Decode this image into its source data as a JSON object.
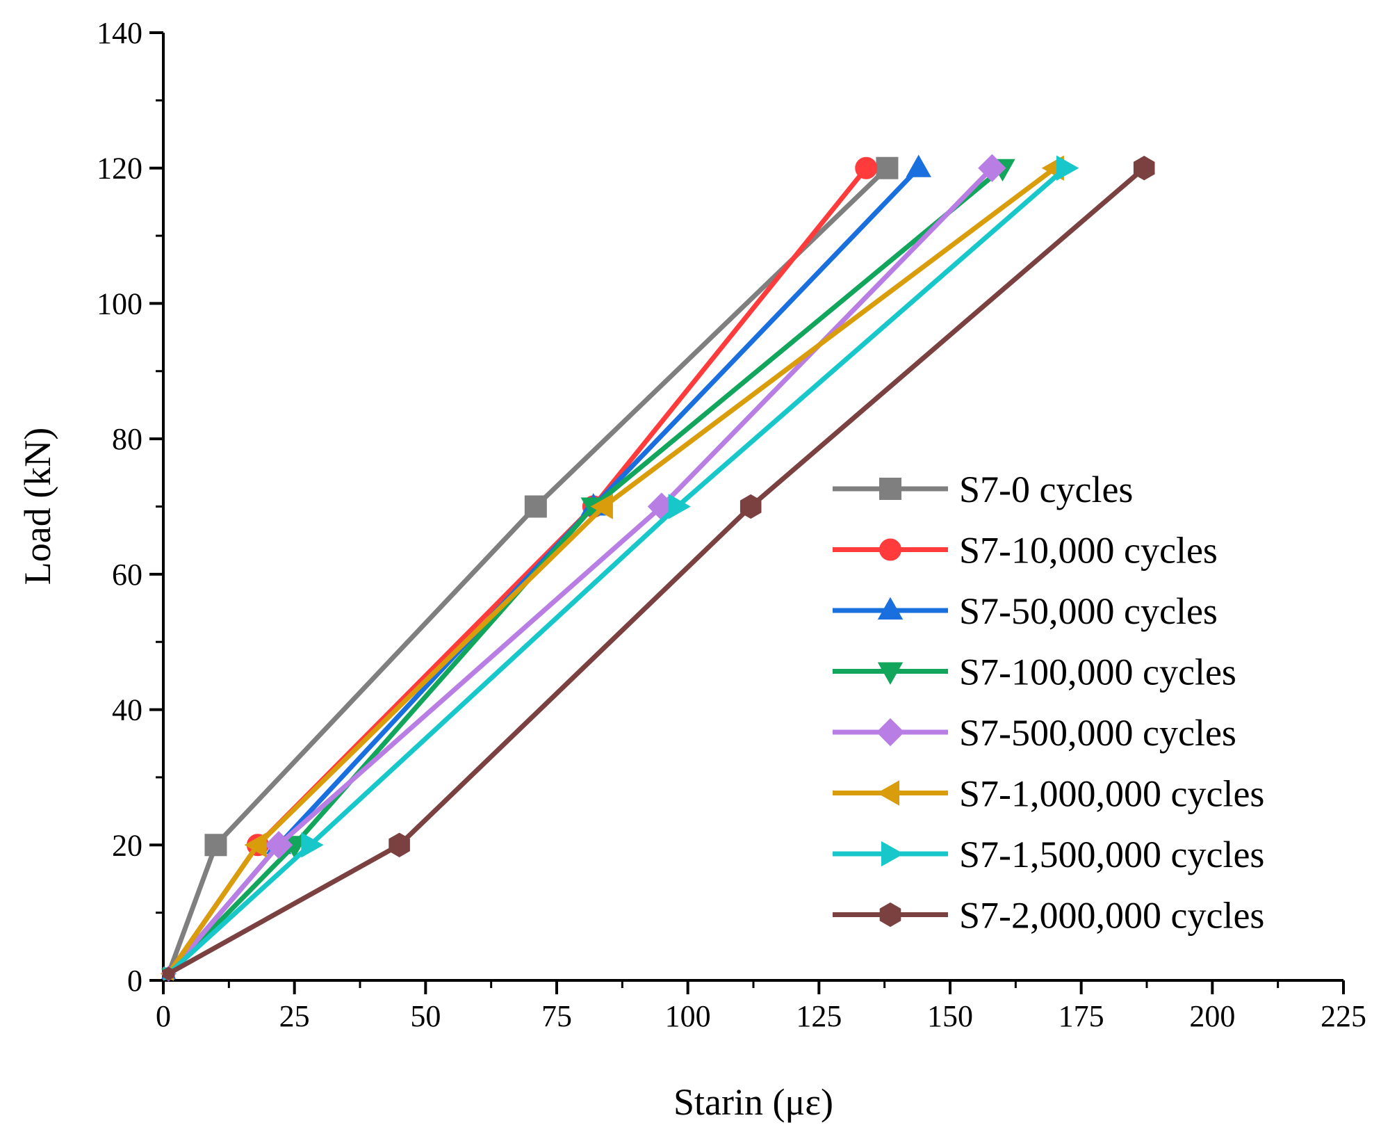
{
  "chart_data": {
    "type": "line",
    "title": "",
    "xlabel": "Starin (με)",
    "ylabel": "Load (kN)",
    "xlim": [
      0,
      225
    ],
    "ylim": [
      0,
      140
    ],
    "xticks": [
      "0",
      "25",
      "50",
      "75",
      "100",
      "125",
      "150",
      "175",
      "200",
      "225"
    ],
    "yticks": [
      "0",
      "20",
      "40",
      "60",
      "80",
      "100",
      "120",
      "140"
    ],
    "grid": false,
    "legend_position": "right",
    "series": [
      {
        "name": "S7-0 cycles",
        "color": "#7f7f7f",
        "marker": "square",
        "points": [
          [
            1,
            1
          ],
          [
            10,
            20
          ],
          [
            71,
            70
          ],
          [
            138,
            120
          ]
        ]
      },
      {
        "name": "S7-10,000 cycles",
        "color": "#ff3b3b",
        "marker": "circle",
        "points": [
          [
            1,
            1
          ],
          [
            18,
            20
          ],
          [
            82,
            70
          ],
          [
            134,
            120
          ]
        ]
      },
      {
        "name": "S7-50,000 cycles",
        "color": "#1a6fdf",
        "marker": "triangle-up",
        "points": [
          [
            1,
            1
          ],
          [
            22,
            20
          ],
          [
            82,
            70
          ],
          [
            144,
            120
          ]
        ]
      },
      {
        "name": "S7-100,000 cycles",
        "color": "#12a65c",
        "marker": "triangle-down",
        "points": [
          [
            1,
            1
          ],
          [
            25,
            20
          ],
          [
            82,
            70
          ],
          [
            160,
            120
          ]
        ]
      },
      {
        "name": "S7-500,000 cycles",
        "color": "#b87ee4",
        "marker": "diamond",
        "points": [
          [
            1,
            1
          ],
          [
            22,
            20
          ],
          [
            95,
            70
          ],
          [
            158,
            120
          ]
        ]
      },
      {
        "name": "S7-1,000,000 cycles",
        "color": "#d99c0b",
        "marker": "triangle-left",
        "points": [
          [
            1,
            1
          ],
          [
            18,
            20
          ],
          [
            84,
            70
          ],
          [
            170,
            120
          ]
        ]
      },
      {
        "name": "S7-1,500,000 cycles",
        "color": "#17c7c9",
        "marker": "triangle-right",
        "points": [
          [
            1,
            1
          ],
          [
            28,
            20
          ],
          [
            98,
            70
          ],
          [
            172,
            120
          ]
        ]
      },
      {
        "name": "S7-2,000,000 cycles",
        "color": "#7b4040",
        "marker": "hexagon",
        "points": [
          [
            1,
            1
          ],
          [
            45,
            20
          ],
          [
            112,
            70
          ],
          [
            187,
            120
          ]
        ]
      }
    ]
  }
}
